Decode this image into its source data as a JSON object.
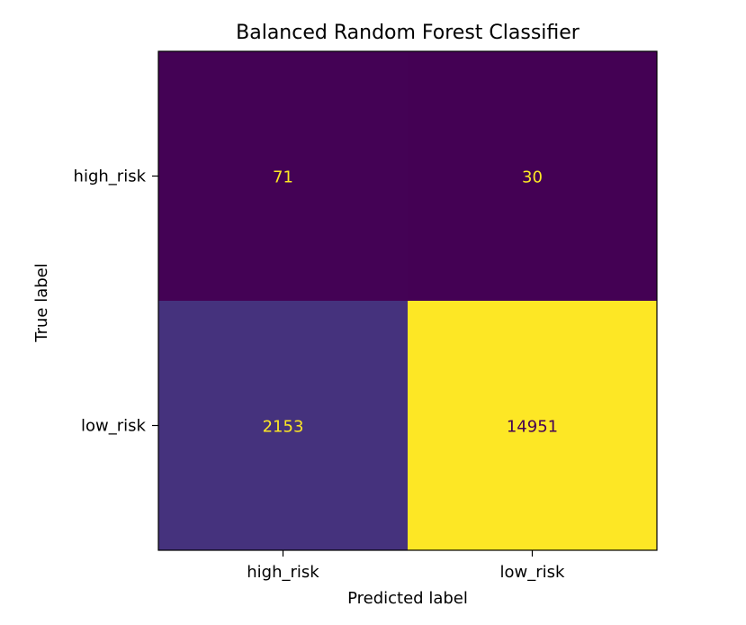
{
  "chart_data": {
    "type": "heatmap",
    "title": "Balanced Random Forest Classifier",
    "xlabel": "Predicted label",
    "ylabel": "True label",
    "x_categories": [
      "high_risk",
      "low_risk"
    ],
    "y_categories": [
      "high_risk",
      "low_risk"
    ],
    "values": [
      [
        71,
        30
      ],
      [
        2153,
        14951
      ]
    ],
    "colormap": "viridis",
    "value_range": [
      30,
      14951
    ],
    "colorbar": false,
    "grid": false
  }
}
